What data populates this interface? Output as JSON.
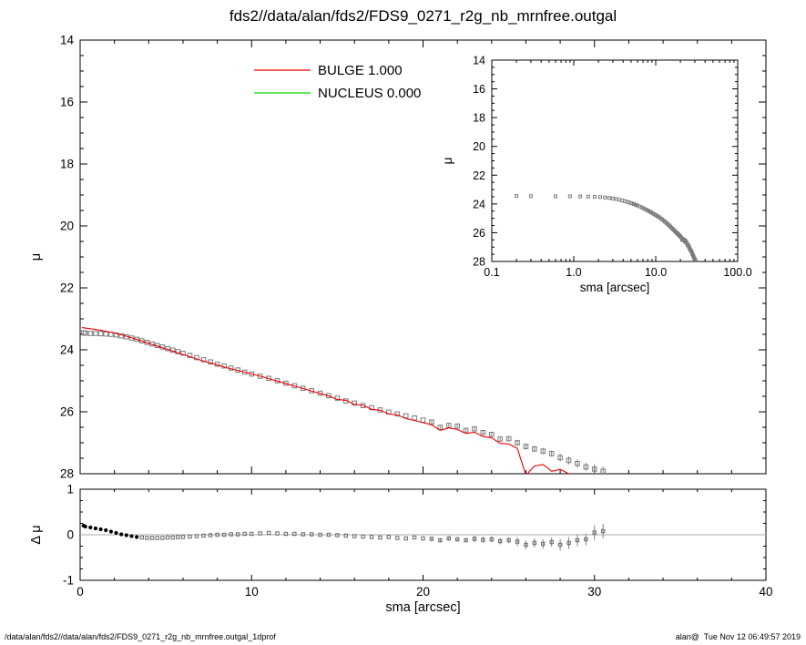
{
  "title": "fds2//data/alan/fds2/FDS9_0271_r2g_nb_mrnfree.outgal",
  "footer": {
    "left": "/data/alan/fds2//data/alan/fds2/FDS9_0271_r2g_nb_mrnfree.outgal_1dprof",
    "right": "alan@  Tue Nov 12 06:49:57 2019"
  },
  "legend": [
    {
      "label": "BULGE  1.000",
      "color": "#ee0000"
    },
    {
      "label": "NUCLEUS  0.000",
      "color": "#00dd00"
    }
  ],
  "chart_data": [
    {
      "name": "main-profile",
      "type": "scatter",
      "xlabel": "",
      "ylabel": "μ",
      "xlim": [
        0,
        40
      ],
      "ylim": [
        14,
        28
      ],
      "xticks": [
        0,
        10,
        20,
        30,
        40
      ],
      "yticks": [
        14,
        16,
        18,
        20,
        22,
        24,
        26,
        28
      ],
      "xminor": 2,
      "yminor": 0.5,
      "series": [
        {
          "name": "galaxy-data",
          "marker": "square",
          "marker_size": 4.6,
          "color": "#7a7a7a",
          "x": [
            0.2,
            0.3,
            0.6,
            0.9,
            1.2,
            1.5,
            1.8,
            2.1,
            2.4,
            2.7,
            3.0,
            3.3,
            3.6,
            3.9,
            4.2,
            4.5,
            4.8,
            5.1,
            5.4,
            5.7,
            6.0,
            6.4,
            6.8,
            7.2,
            7.6,
            8.0,
            8.4,
            8.8,
            9.2,
            9.6,
            10.0,
            10.5,
            11.0,
            11.5,
            12.0,
            12.5,
            13.0,
            13.5,
            14.0,
            14.5,
            15.0,
            15.5,
            16.0,
            16.5,
            17.0,
            17.5,
            18.0,
            18.5,
            19.0,
            19.5,
            20.0,
            20.5,
            21.0,
            21.5,
            22.0,
            22.5,
            23.0,
            23.5,
            24.0,
            24.5,
            25.0,
            25.5,
            26.0,
            26.5,
            27.0,
            27.5,
            28.0,
            28.5,
            29.0,
            29.5,
            30.0,
            30.5
          ],
          "y": [
            23.45,
            23.46,
            23.47,
            23.47,
            23.48,
            23.49,
            23.5,
            23.52,
            23.55,
            23.58,
            23.62,
            23.66,
            23.71,
            23.76,
            23.81,
            23.86,
            23.91,
            23.96,
            24.01,
            24.06,
            24.11,
            24.18,
            24.25,
            24.32,
            24.39,
            24.46,
            24.52,
            24.59,
            24.65,
            24.72,
            24.78,
            24.85,
            24.92,
            25.0,
            25.08,
            25.16,
            25.24,
            25.32,
            25.4,
            25.48,
            25.56,
            25.65,
            25.72,
            25.8,
            25.87,
            25.94,
            26.01,
            26.07,
            26.13,
            26.2,
            26.27,
            26.33,
            26.5,
            26.44,
            26.46,
            26.6,
            26.55,
            26.67,
            26.73,
            26.88,
            26.87,
            27.0,
            27.12,
            27.2,
            27.27,
            27.35,
            27.48,
            27.57,
            27.67,
            27.78,
            27.85,
            27.92
          ],
          "yerr": [
            0.01,
            0.01,
            0.01,
            0.01,
            0.01,
            0.01,
            0.01,
            0.01,
            0.01,
            0.01,
            0.01,
            0.01,
            0.01,
            0.01,
            0.01,
            0.01,
            0.01,
            0.01,
            0.01,
            0.01,
            0.01,
            0.01,
            0.01,
            0.01,
            0.01,
            0.01,
            0.01,
            0.01,
            0.01,
            0.01,
            0.01,
            0.01,
            0.01,
            0.01,
            0.01,
            0.01,
            0.01,
            0.01,
            0.01,
            0.01,
            0.01,
            0.03,
            0.03,
            0.03,
            0.03,
            0.03,
            0.03,
            0.03,
            0.03,
            0.03,
            0.03,
            0.05,
            0.05,
            0.05,
            0.05,
            0.05,
            0.07,
            0.07,
            0.07,
            0.07,
            0.07,
            0.1,
            0.1,
            0.1,
            0.1,
            0.1,
            0.13,
            0.13,
            0.13,
            0.13,
            0.16,
            0.16
          ]
        },
        {
          "name": "bulge-model",
          "type": "line",
          "color": "#ee0000",
          "x": [
            0.1,
            0.5,
            1.0,
            1.5,
            2.0,
            2.5,
            3.0,
            3.5,
            4.0,
            4.5,
            5.0,
            5.5,
            6.0,
            6.5,
            7.0,
            7.5,
            8.0,
            8.5,
            9.0,
            9.5,
            10.0,
            10.5,
            11.0,
            11.5,
            12.0,
            12.5,
            13.0,
            13.5,
            14.0,
            14.5,
            15.0,
            15.5,
            16.0,
            16.5,
            17.0,
            17.5,
            18.0,
            18.5,
            19.0,
            19.5,
            20.0,
            20.5,
            21.0,
            21.5,
            22.0,
            22.5,
            23.0,
            23.5,
            24.0,
            24.5,
            25.0,
            25.5,
            26.0,
            26.5,
            27.0,
            27.5,
            28.0,
            28.5,
            29.0,
            29.5
          ],
          "y": [
            23.28,
            23.31,
            23.35,
            23.4,
            23.46,
            23.53,
            23.61,
            23.7,
            23.79,
            23.88,
            23.97,
            24.06,
            24.15,
            24.24,
            24.33,
            24.41,
            24.49,
            24.57,
            24.64,
            24.71,
            24.78,
            24.85,
            24.93,
            25.01,
            25.09,
            25.17,
            25.25,
            25.33,
            25.41,
            25.49,
            25.6,
            25.63,
            25.76,
            25.79,
            25.92,
            25.95,
            26.07,
            26.1,
            26.22,
            26.28,
            26.35,
            26.42,
            26.6,
            26.52,
            26.57,
            26.7,
            26.66,
            26.8,
            26.84,
            27.02,
            27.04,
            27.18,
            28.05,
            27.75,
            27.7,
            27.92,
            27.86,
            28.0,
            28.12,
            28.3
          ]
        }
      ]
    },
    {
      "name": "inset-profile",
      "type": "scatter",
      "xlabel": "sma [arcsec]",
      "ylabel": "μ",
      "xscale": "log",
      "xlim": [
        0.1,
        100
      ],
      "xticks": [
        0.1,
        1,
        10,
        100
      ],
      "xtick_labels": [
        "0.1",
        "1.0",
        "10.0",
        "100.0"
      ],
      "ylim": [
        14,
        28
      ],
      "yticks": [
        14,
        16,
        18,
        20,
        22,
        24,
        26,
        28
      ],
      "yminor": 0.5,
      "marker_size": 3,
      "series_from": "main-profile/galaxy-data"
    },
    {
      "name": "residuals",
      "type": "scatter",
      "xlabel": "sma [arcsec]",
      "ylabel": "Δ μ",
      "xlim": [
        0,
        40
      ],
      "ylim": [
        1,
        -1
      ],
      "xticks": [
        0,
        10,
        20,
        30,
        40
      ],
      "yticks": [
        1,
        0,
        -1
      ],
      "ytick_labels": [
        "1",
        "0",
        "-1"
      ],
      "xminor": 2,
      "yminor": 0.25,
      "zero_line": true,
      "series": [
        {
          "name": "residual-points",
          "marker": "square",
          "marker_size": 3.4,
          "color": "#666666",
          "solid_until_x": 3.5,
          "solid_color": "#000000",
          "x": [
            0.2,
            0.3,
            0.6,
            0.9,
            1.2,
            1.5,
            1.8,
            2.1,
            2.4,
            2.7,
            3.0,
            3.3,
            3.6,
            3.9,
            4.2,
            4.5,
            4.8,
            5.1,
            5.4,
            5.7,
            6.0,
            6.4,
            6.8,
            7.2,
            7.6,
            8.0,
            8.4,
            8.8,
            9.2,
            9.6,
            10.0,
            10.5,
            11.0,
            11.5,
            12.0,
            12.5,
            13.0,
            13.5,
            14.0,
            14.5,
            15.0,
            15.5,
            16.0,
            16.5,
            17.0,
            17.5,
            18.0,
            18.5,
            19.0,
            19.5,
            20.0,
            20.5,
            21.0,
            21.5,
            22.0,
            22.5,
            23.0,
            23.5,
            24.0,
            24.5,
            25.0,
            25.5,
            26.0,
            26.5,
            27.0,
            27.5,
            28.0,
            28.5,
            29.0,
            29.5,
            30.0,
            30.5
          ],
          "y": [
            0.2,
            0.18,
            0.16,
            0.14,
            0.12,
            0.1,
            0.07,
            0.04,
            0.01,
            -0.01,
            -0.03,
            -0.05,
            -0.06,
            -0.07,
            -0.07,
            -0.07,
            -0.07,
            -0.06,
            -0.06,
            -0.05,
            -0.05,
            -0.04,
            -0.03,
            -0.02,
            -0.01,
            0.0,
            0.0,
            0.01,
            0.01,
            0.02,
            0.02,
            0.03,
            0.04,
            0.03,
            0.02,
            0.02,
            0.01,
            0.01,
            0.0,
            0.0,
            -0.01,
            -0.02,
            -0.03,
            -0.04,
            -0.05,
            -0.06,
            -0.05,
            -0.07,
            -0.08,
            -0.06,
            -0.08,
            -0.09,
            -0.12,
            -0.08,
            -0.1,
            -0.12,
            -0.09,
            -0.11,
            -0.1,
            -0.14,
            -0.12,
            -0.15,
            -0.22,
            -0.18,
            -0.2,
            -0.16,
            -0.22,
            -0.18,
            -0.12,
            -0.1,
            0.05,
            0.08
          ],
          "yerr": [
            0.01,
            0.01,
            0.01,
            0.01,
            0.01,
            0.01,
            0.01,
            0.01,
            0.01,
            0.01,
            0.01,
            0.01,
            0.01,
            0.01,
            0.01,
            0.01,
            0.01,
            0.01,
            0.01,
            0.01,
            0.01,
            0.01,
            0.01,
            0.01,
            0.01,
            0.01,
            0.01,
            0.01,
            0.01,
            0.01,
            0.01,
            0.01,
            0.01,
            0.01,
            0.01,
            0.01,
            0.01,
            0.01,
            0.01,
            0.01,
            0.01,
            0.03,
            0.03,
            0.03,
            0.03,
            0.03,
            0.03,
            0.03,
            0.03,
            0.03,
            0.03,
            0.05,
            0.05,
            0.05,
            0.05,
            0.05,
            0.07,
            0.07,
            0.07,
            0.07,
            0.07,
            0.1,
            0.1,
            0.1,
            0.1,
            0.1,
            0.13,
            0.13,
            0.13,
            0.13,
            0.16,
            0.16
          ]
        }
      ]
    }
  ]
}
